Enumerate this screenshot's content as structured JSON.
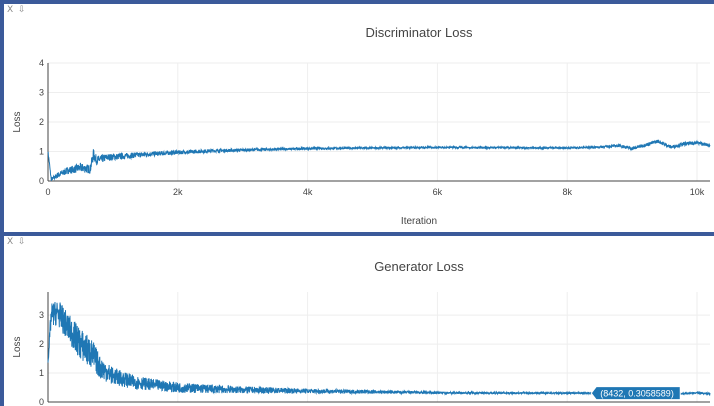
{
  "windows": [
    {
      "close_icon": "x-icon",
      "collapse_icon": "arrow-down-icon",
      "close_glyph": "X",
      "collapse_glyph": "⇩"
    },
    {
      "close_icon": "x-icon",
      "collapse_icon": "arrow-down-icon",
      "close_glyph": "X",
      "collapse_glyph": "⇩"
    }
  ],
  "colors": {
    "line": "#1f77b4",
    "grid": "#eeeeee",
    "frame": "#3b5a9a"
  },
  "chart_data": [
    {
      "type": "line",
      "title": "Discriminator Loss",
      "xlabel": "Iteration",
      "ylabel": "Loss",
      "xlim": [
        0,
        10200
      ],
      "ylim": [
        0,
        4
      ],
      "xticks": [
        0,
        2000,
        4000,
        6000,
        8000,
        10000
      ],
      "xtick_labels": [
        "0",
        "2k",
        "4k",
        "6k",
        "8k",
        "10k"
      ],
      "yticks": [
        0,
        1,
        2,
        3,
        4
      ],
      "ytick_labels": [
        "0",
        "1",
        "2",
        "3",
        "4"
      ],
      "grid": true,
      "series": [
        {
          "x": [
            0,
            50,
            150,
            300,
            500,
            650,
            700,
            750,
            900,
            1200,
            1600,
            2000,
            2500,
            3000,
            4000,
            5000,
            6000,
            7000,
            8000,
            8500,
            8800,
            9000,
            9200,
            9400,
            9600,
            9800,
            10000,
            10200
          ],
          "y": [
            1.0,
            0.05,
            0.2,
            0.35,
            0.45,
            0.4,
            0.9,
            0.7,
            0.8,
            0.85,
            0.92,
            0.97,
            1.02,
            1.05,
            1.1,
            1.12,
            1.14,
            1.13,
            1.12,
            1.15,
            1.2,
            1.1,
            1.22,
            1.35,
            1.15,
            1.25,
            1.3,
            1.2
          ],
          "noise": [
            0.05,
            0.05,
            0.1,
            0.12,
            0.15,
            0.15,
            0.2,
            0.15,
            0.12,
            0.1,
            0.08,
            0.07,
            0.06,
            0.05,
            0.04,
            0.03,
            0.03,
            0.03,
            0.03,
            0.04,
            0.05,
            0.06,
            0.06,
            0.06,
            0.06,
            0.06,
            0.06,
            0.05
          ]
        }
      ]
    },
    {
      "type": "line",
      "title": "Generator Loss",
      "xlabel": "",
      "ylabel": "Loss",
      "xlim": [
        0,
        10200
      ],
      "ylim": [
        0,
        3.8
      ],
      "xticks": [
        0,
        2000,
        4000,
        6000,
        8000,
        10000
      ],
      "yticks": [
        0,
        1,
        2,
        3
      ],
      "ytick_labels": [
        "0",
        "1",
        "2",
        "3"
      ],
      "grid": true,
      "hover": {
        "text": "(8432, 0.3058589)",
        "x": 8432,
        "y": 0.3058589
      },
      "series": [
        {
          "x": [
            0,
            50,
            150,
            300,
            500,
            650,
            700,
            800,
            1000,
            1300,
            1600,
            2000,
            2500,
            3000,
            4000,
            5000,
            6000,
            7000,
            8000,
            8432,
            9000,
            9500,
            10000,
            10200
          ],
          "y": [
            1.4,
            3.0,
            3.1,
            2.6,
            2.0,
            1.7,
            1.6,
            1.2,
            0.9,
            0.7,
            0.6,
            0.5,
            0.45,
            0.42,
            0.38,
            0.35,
            0.32,
            0.31,
            0.31,
            0.3058589,
            0.3,
            0.25,
            0.32,
            0.28
          ],
          "noise": [
            0.1,
            0.4,
            0.45,
            0.5,
            0.55,
            0.55,
            0.5,
            0.4,
            0.3,
            0.25,
            0.2,
            0.18,
            0.15,
            0.12,
            0.08,
            0.06,
            0.04,
            0.03,
            0.03,
            0.03,
            0.03,
            0.03,
            0.03,
            0.03
          ]
        }
      ]
    }
  ]
}
